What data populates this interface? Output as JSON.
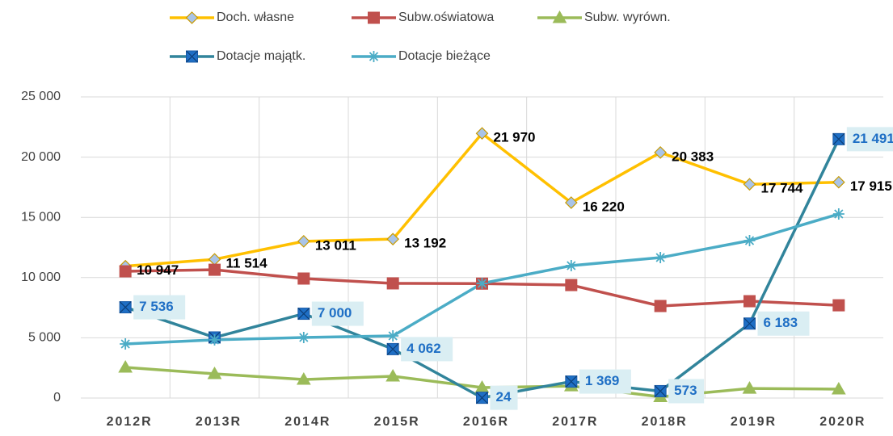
{
  "chart_data": {
    "type": "line",
    "categories": [
      "2012R",
      "2013R",
      "2014R",
      "2015R",
      "2016R",
      "2017R",
      "2018R",
      "2019R",
      "2020R"
    ],
    "ylim": [
      0,
      25000
    ],
    "yticks": [
      0,
      {
        "value": 5000,
        "label": "5 000"
      },
      {
        "value": 10000,
        "label": "10 000"
      },
      {
        "value": 15000,
        "label": "15 000"
      },
      {
        "value": 20000,
        "label": "20 000"
      },
      {
        "value": 25000,
        "label": "25 000"
      }
    ],
    "grid": true,
    "legend": "top",
    "series": [
      {
        "name": "Doch. własne",
        "color": "#ffc000",
        "marker": "diamond",
        "marker_fill": "#a9c4e8",
        "values": [
          10947,
          11514,
          13011,
          13192,
          21970,
          16220,
          20383,
          17744,
          17915
        ],
        "value_labels": [
          "10 947",
          "11 514",
          "13 011",
          "13 192",
          "21 970",
          "16 220",
          "20 383",
          "17 744",
          "17 915"
        ]
      },
      {
        "name": "Subw.oświatowa",
        "color": "#c0504d",
        "marker": "square",
        "marker_fill": "#c0504d",
        "values": [
          10520,
          10650,
          9920,
          9520,
          9500,
          9380,
          7640,
          8040,
          7700
        ]
      },
      {
        "name": "Subw. wyrówn.",
        "color": "#9bbb59",
        "marker": "triangle",
        "marker_fill": "#9bbb59",
        "values": [
          2550,
          2010,
          1540,
          1810,
          870,
          1000,
          100,
          800,
          740
        ]
      },
      {
        "name": "Dotacje majątk.",
        "color": "#31849b",
        "marker": "xsquare",
        "marker_fill": "#1f6fc5",
        "values": [
          7536,
          5030,
          7000,
          4062,
          24,
          1369,
          573,
          6183,
          21491
        ],
        "value_labels": [
          "7 536",
          null,
          "7 000",
          "4 062",
          "24",
          "1 369",
          "573",
          "6 183",
          "21 491"
        ]
      },
      {
        "name": "Dotacje bieżące",
        "color": "#4bacc6",
        "marker": "star",
        "marker_fill": "#4bacc6",
        "values": [
          4490,
          4830,
          5030,
          5160,
          9520,
          10990,
          11660,
          13070,
          15280
        ]
      }
    ]
  }
}
